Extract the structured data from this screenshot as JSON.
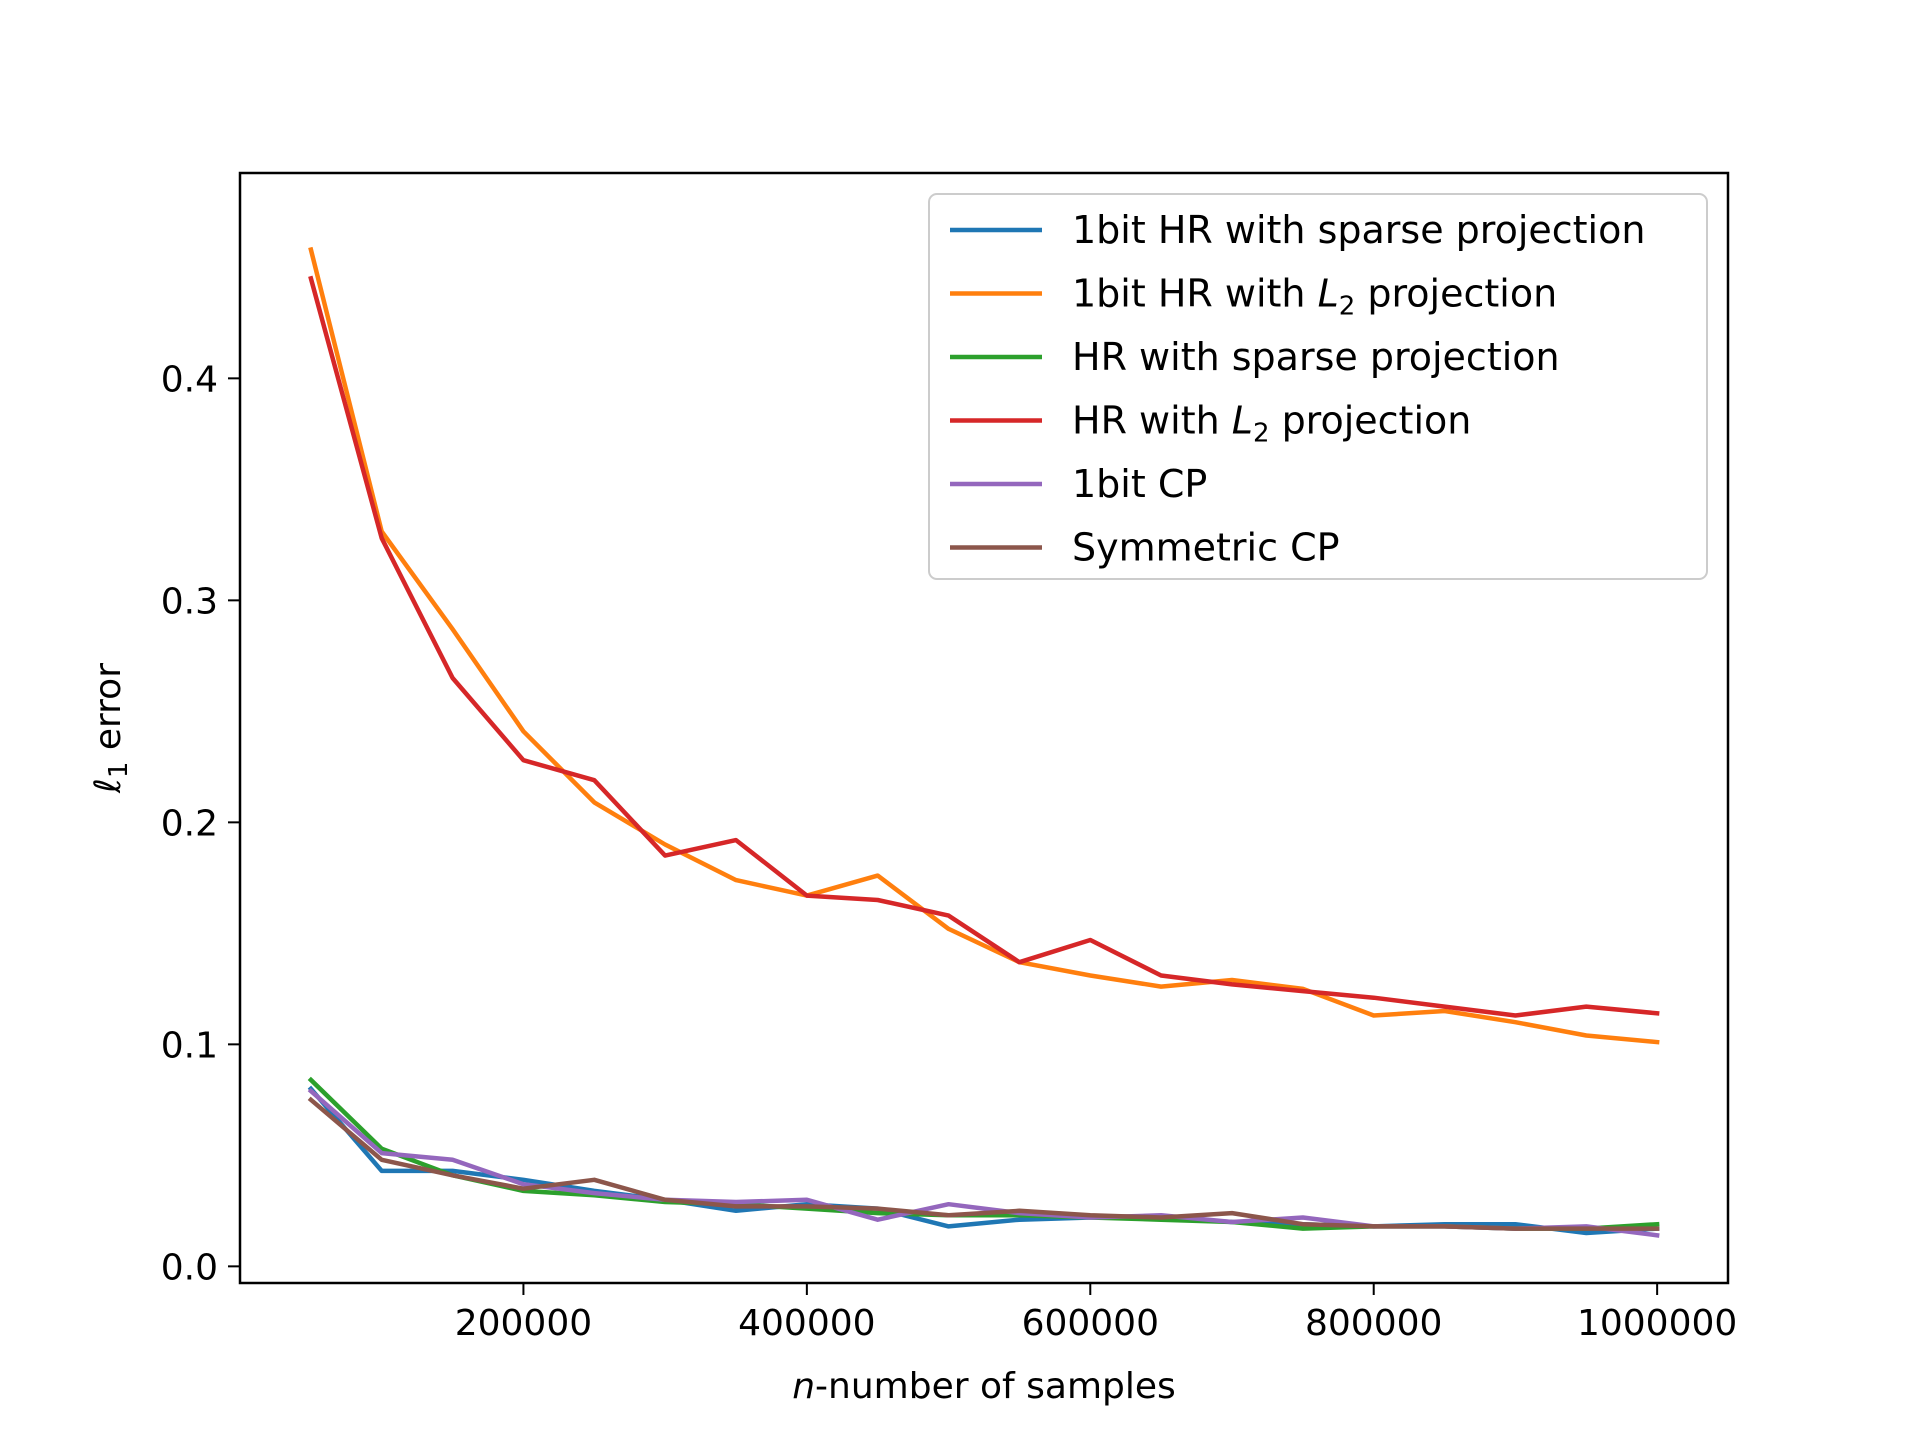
{
  "chart_data": {
    "type": "line",
    "title": "",
    "xlabel": "n-number of samples",
    "xlabel_italic_part": "n",
    "xlabel_rest": "-number of samples",
    "ylabel": "ℓ1 error",
    "xlim": [
      0,
      1050000
    ],
    "ylim": [
      -0.0075,
      0.4925
    ],
    "xticks": [
      200000,
      400000,
      600000,
      800000,
      1000000
    ],
    "xtick_labels": [
      "200000",
      "400000",
      "600000",
      "800000",
      "1000000"
    ],
    "yticks": [
      0.0,
      0.1,
      0.2,
      0.3,
      0.4
    ],
    "ytick_labels": [
      "0.0",
      "0.1",
      "0.2",
      "0.3",
      "0.4"
    ],
    "legend_position": "top-right",
    "grid": false,
    "x": [
      50000,
      100000,
      150000,
      200000,
      250000,
      300000,
      350000,
      400000,
      450000,
      500000,
      550000,
      600000,
      650000,
      700000,
      750000,
      800000,
      850000,
      900000,
      950000,
      1000000
    ],
    "series": [
      {
        "name": "1bit HR with sparse projection",
        "color": "#1f77b4",
        "values": [
          0.08,
          0.043,
          0.043,
          0.039,
          0.034,
          0.03,
          0.025,
          0.028,
          0.026,
          0.018,
          0.021,
          0.022,
          0.022,
          0.02,
          0.019,
          0.018,
          0.019,
          0.019,
          0.015,
          0.017
        ]
      },
      {
        "name": "1bit HR with L2 projection",
        "color": "#ff7f0e",
        "values": [
          0.458,
          0.331,
          0.287,
          0.241,
          0.209,
          0.19,
          0.174,
          0.167,
          0.176,
          0.152,
          0.137,
          0.131,
          0.126,
          0.129,
          0.125,
          0.113,
          0.115,
          0.11,
          0.104,
          0.101
        ]
      },
      {
        "name": "HR with sparse projection",
        "color": "#2ca02c",
        "values": [
          0.084,
          0.053,
          0.041,
          0.034,
          0.032,
          0.029,
          0.028,
          0.026,
          0.024,
          0.023,
          0.023,
          0.022,
          0.021,
          0.02,
          0.017,
          0.018,
          0.018,
          0.017,
          0.017,
          0.019
        ]
      },
      {
        "name": "HR with L2 projection",
        "color": "#d62728",
        "values": [
          0.445,
          0.328,
          0.265,
          0.228,
          0.219,
          0.185,
          0.192,
          0.167,
          0.165,
          0.158,
          0.137,
          0.147,
          0.131,
          0.127,
          0.124,
          0.121,
          0.117,
          0.113,
          0.117,
          0.114
        ]
      },
      {
        "name": "1bit CP",
        "color": "#9467bd",
        "values": [
          0.079,
          0.051,
          0.048,
          0.037,
          0.033,
          0.03,
          0.029,
          0.03,
          0.021,
          0.028,
          0.024,
          0.022,
          0.023,
          0.02,
          0.022,
          0.018,
          0.018,
          0.017,
          0.018,
          0.014
        ]
      },
      {
        "name": "Symmetric CP",
        "color": "#8c564b",
        "values": [
          0.075,
          0.048,
          0.041,
          0.035,
          0.039,
          0.03,
          0.027,
          0.027,
          0.026,
          0.023,
          0.025,
          0.023,
          0.022,
          0.024,
          0.019,
          0.018,
          0.018,
          0.017,
          0.017,
          0.017
        ]
      }
    ],
    "legend_entries": [
      {
        "prefix": "1bit HR with sparse projection",
        "math": "",
        "sub": "",
        "suffix": ""
      },
      {
        "prefix": "1bit HR with ",
        "math": "L",
        "sub": "2",
        "suffix": " projection"
      },
      {
        "prefix": "HR with sparse projection",
        "math": "",
        "sub": "",
        "suffix": ""
      },
      {
        "prefix": "HR with ",
        "math": "L",
        "sub": "2",
        "suffix": " projection"
      },
      {
        "prefix": "1bit CP",
        "math": "",
        "sub": "",
        "suffix": ""
      },
      {
        "prefix": "Symmetric CP",
        "math": "",
        "sub": "",
        "suffix": ""
      }
    ],
    "ylabel_parts": {
      "ell": "ℓ",
      "sub": "1",
      "rest": " error"
    }
  }
}
